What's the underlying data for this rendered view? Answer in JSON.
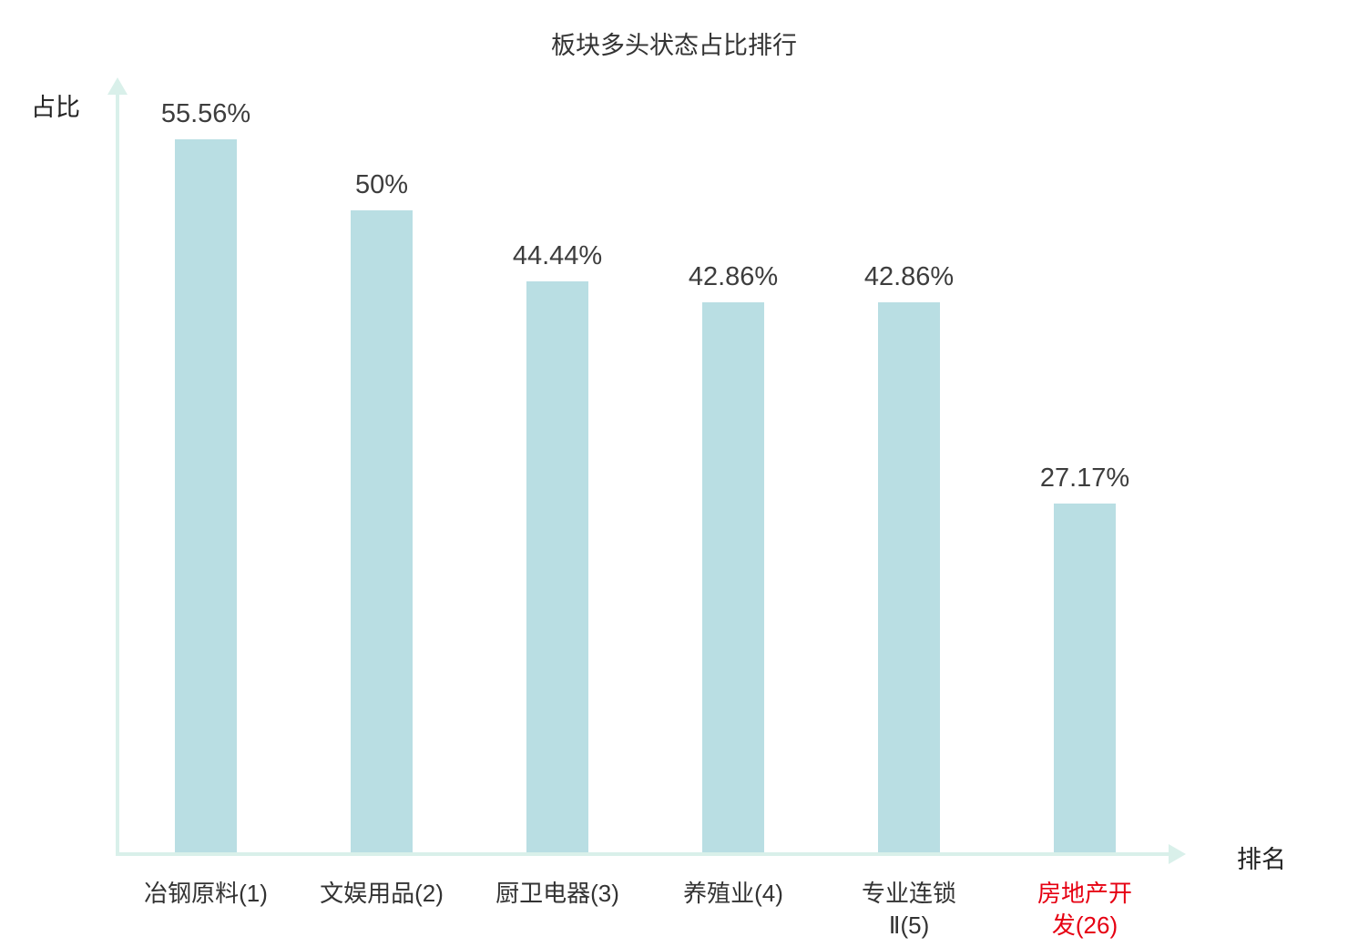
{
  "chart_data": {
    "type": "bar",
    "title": "板块多头状态占比排行",
    "ylabel": "占比",
    "xlabel": "排名",
    "categories": [
      "冶钢原料(1)",
      "文娱用品(2)",
      "厨卫电器(3)",
      "养殖业(4)",
      "专业连锁\nⅡ(5)",
      "房地产开\n发(26)"
    ],
    "values": [
      55.56,
      50,
      44.44,
      42.86,
      42.86,
      27.17
    ],
    "value_labels": [
      "55.56%",
      "50%",
      "44.44%",
      "42.86%",
      "42.86%",
      "27.17%"
    ],
    "ylim": [
      0,
      60
    ],
    "grid": false,
    "legend": "none",
    "highlight_index": 5,
    "colors": {
      "bar": "#b9dee3",
      "axis": "#d9f0ea",
      "value_label": "#3d3d3d",
      "category_label": "#333333",
      "highlight": "#e60012"
    }
  }
}
